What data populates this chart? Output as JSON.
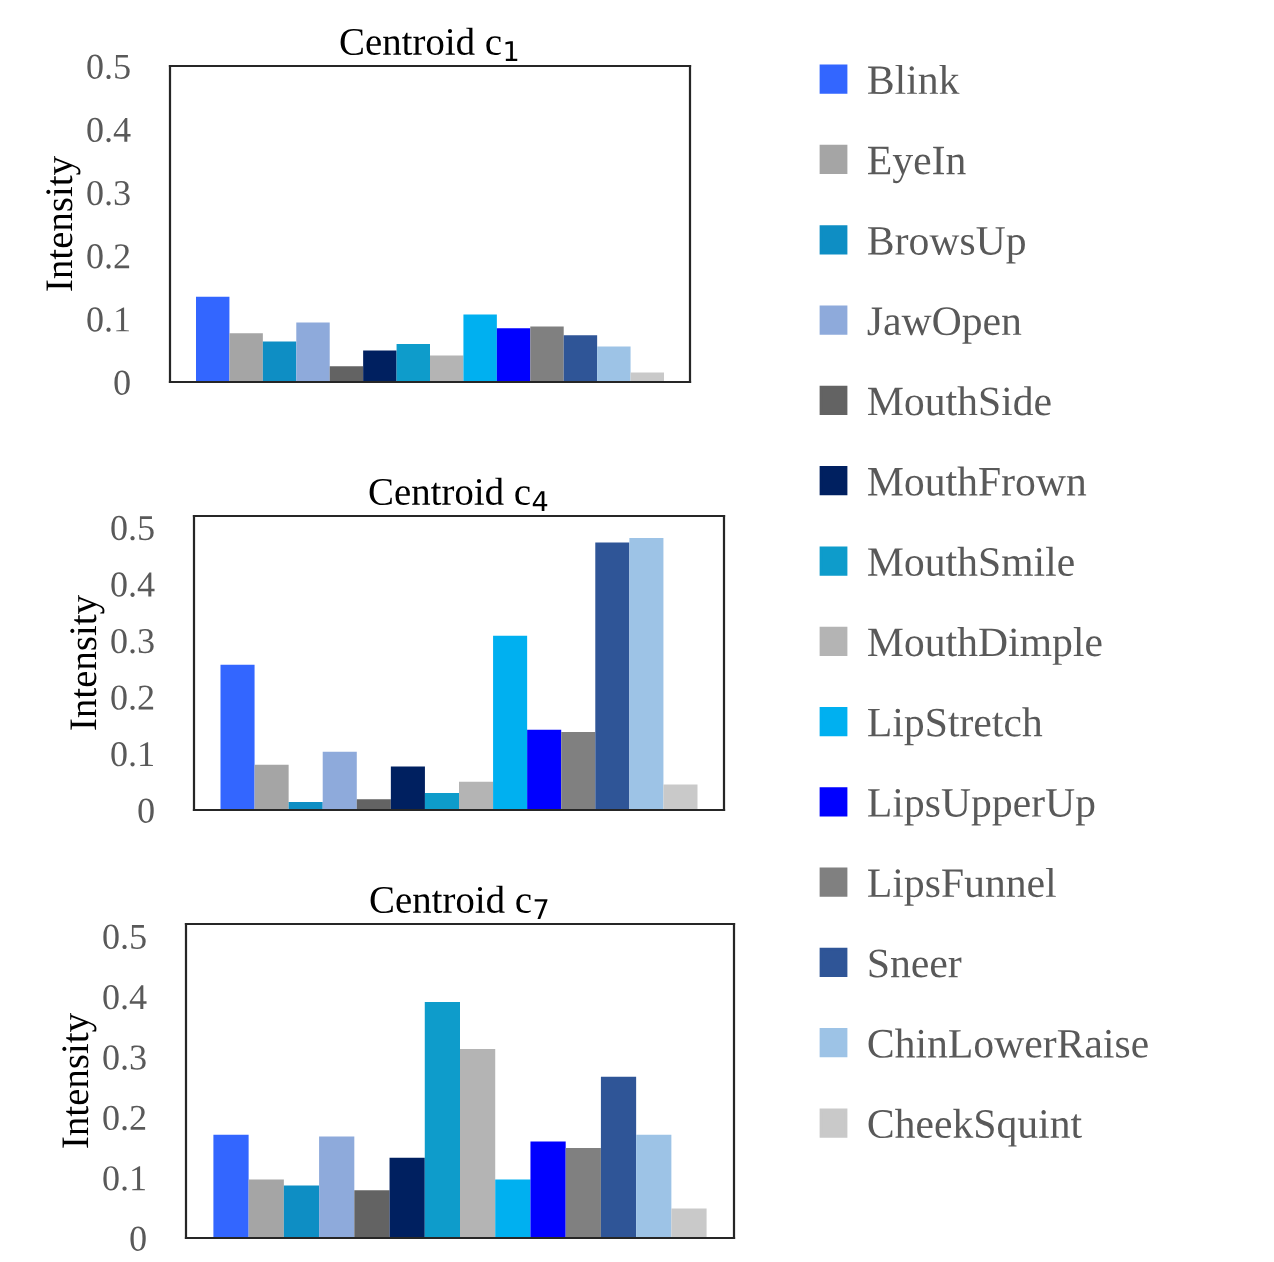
{
  "chart_data": [
    {
      "type": "bar",
      "title": "Centroid c$_{1}$",
      "ylabel": "Intensity",
      "categories": [
        null
      ],
      "ylim": [
        0,
        0.5
      ],
      "yticks": [
        0,
        0.1,
        0.2,
        0.3,
        0.4,
        0.5
      ],
      "grid": false,
      "legend": "right",
      "series": [
        {
          "name": "Blink",
          "color": "#3366ff",
          "values": [
            0.135
          ]
        },
        {
          "name": "EyeIn",
          "color": "#a5a5a5",
          "values": [
            0.077
          ]
        },
        {
          "name": "BrowsUp",
          "color": "#0e8ec4",
          "values": [
            0.064
          ]
        },
        {
          "name": "JawOpen",
          "color": "#8eaadb",
          "values": [
            0.094
          ]
        },
        {
          "name": "MouthSide",
          "color": "#636363",
          "values": [
            0.025
          ]
        },
        {
          "name": "MouthFrown",
          "color": "#002060",
          "values": [
            0.05
          ]
        },
        {
          "name": "MouthSmile",
          "color": "#0e9ccb",
          "values": [
            0.06
          ]
        },
        {
          "name": "MouthDimple",
          "color": "#b4b4b4",
          "values": [
            0.042
          ]
        },
        {
          "name": "LipStretch",
          "color": "#00b0f0",
          "values": [
            0.107
          ]
        },
        {
          "name": "LipsUpperUp",
          "color": "#0000ff",
          "values": [
            0.085
          ]
        },
        {
          "name": "LipsFunnel",
          "color": "#808080",
          "values": [
            0.088
          ]
        },
        {
          "name": "Sneer",
          "color": "#2f5597",
          "values": [
            0.074
          ]
        },
        {
          "name": "ChinLowerRaise",
          "color": "#9dc3e6",
          "values": [
            0.056
          ]
        },
        {
          "name": "CheekSquint",
          "color": "#c9c9c9",
          "values": [
            0.015
          ]
        }
      ]
    },
    {
      "type": "bar",
      "title": "Centroid c$_{4}$",
      "ylabel": "Intensity",
      "categories": [
        null
      ],
      "ylim": [
        0,
        0.52
      ],
      "yticks": [
        0,
        0.1,
        0.2,
        0.3,
        0.4,
        0.5
      ],
      "grid": false,
      "series": [
        {
          "color": "#3366ff",
          "values": [
            0.257
          ]
        },
        {
          "color": "#a5a5a5",
          "values": [
            0.08
          ]
        },
        {
          "color": "#0e8ec4",
          "values": [
            0.014
          ]
        },
        {
          "color": "#8eaadb",
          "values": [
            0.103
          ]
        },
        {
          "color": "#636363",
          "values": [
            0.019
          ]
        },
        {
          "color": "#002060",
          "values": [
            0.077
          ]
        },
        {
          "color": "#0e9ccb",
          "values": [
            0.03
          ]
        },
        {
          "color": "#b4b4b4",
          "values": [
            0.05
          ]
        },
        {
          "color": "#00b0f0",
          "values": [
            0.308
          ]
        },
        {
          "color": "#0000ff",
          "values": [
            0.142
          ]
        },
        {
          "color": "#808080",
          "values": [
            0.138
          ]
        },
        {
          "color": "#2f5597",
          "values": [
            0.473
          ]
        },
        {
          "color": "#9dc3e6",
          "values": [
            0.481
          ]
        },
        {
          "color": "#c9c9c9",
          "values": [
            0.045
          ]
        }
      ]
    },
    {
      "type": "bar",
      "title": "Centroid c$_{7}$",
      "ylabel": "Intensity",
      "categories": [
        null
      ],
      "ylim": [
        0,
        0.52
      ],
      "yticks": [
        0,
        0.1,
        0.2,
        0.3,
        0.4,
        0.5
      ],
      "grid": false,
      "series": [
        {
          "color": "#3366ff",
          "values": [
            0.171
          ]
        },
        {
          "color": "#a5a5a5",
          "values": [
            0.097
          ]
        },
        {
          "color": "#0e8ec4",
          "values": [
            0.087
          ]
        },
        {
          "color": "#8eaadb",
          "values": [
            0.168
          ]
        },
        {
          "color": "#636363",
          "values": [
            0.079
          ]
        },
        {
          "color": "#002060",
          "values": [
            0.133
          ]
        },
        {
          "color": "#0e9ccb",
          "values": [
            0.391
          ]
        },
        {
          "color": "#b4b4b4",
          "values": [
            0.313
          ]
        },
        {
          "color": "#00b0f0",
          "values": [
            0.097
          ]
        },
        {
          "color": "#0000ff",
          "values": [
            0.16
          ]
        },
        {
          "color": "#808080",
          "values": [
            0.149
          ]
        },
        {
          "color": "#2f5597",
          "values": [
            0.267
          ]
        },
        {
          "color": "#9dc3e6",
          "values": [
            0.171
          ]
        },
        {
          "color": "#c9c9c9",
          "values": [
            0.049
          ]
        }
      ]
    }
  ]
}
